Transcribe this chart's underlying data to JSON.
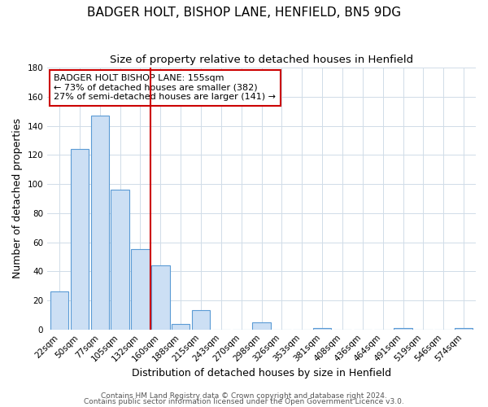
{
  "title": "BADGER HOLT, BISHOP LANE, HENFIELD, BN5 9DG",
  "subtitle": "Size of property relative to detached houses in Henfield",
  "xlabel": "Distribution of detached houses by size in Henfield",
  "ylabel": "Number of detached properties",
  "bar_labels": [
    "22sqm",
    "50sqm",
    "77sqm",
    "105sqm",
    "132sqm",
    "160sqm",
    "188sqm",
    "215sqm",
    "243sqm",
    "270sqm",
    "298sqm",
    "326sqm",
    "353sqm",
    "381sqm",
    "408sqm",
    "436sqm",
    "464sqm",
    "491sqm",
    "519sqm",
    "546sqm",
    "574sqm"
  ],
  "bar_heights": [
    26,
    124,
    147,
    96,
    55,
    44,
    4,
    13,
    0,
    0,
    5,
    0,
    0,
    1,
    0,
    0,
    0,
    1,
    0,
    0,
    1
  ],
  "bar_color": "#ccdff4",
  "bar_edge_color": "#5b9bd5",
  "vline_color": "#cc0000",
  "annotation_line1": "BADGER HOLT BISHOP LANE: 155sqm",
  "annotation_line2": "← 73% of detached houses are smaller (382)",
  "annotation_line3": "27% of semi-detached houses are larger (141) →",
  "annotation_box_color": "white",
  "annotation_box_edge_color": "#cc0000",
  "ylim": [
    0,
    180
  ],
  "yticks": [
    0,
    20,
    40,
    60,
    80,
    100,
    120,
    140,
    160,
    180
  ],
  "footer_line1": "Contains HM Land Registry data © Crown copyright and database right 2024.",
  "footer_line2": "Contains public sector information licensed under the Open Government Licence v3.0.",
  "background_color": "#ffffff",
  "grid_color": "#d0dce8",
  "title_fontsize": 11,
  "subtitle_fontsize": 9.5,
  "axis_label_fontsize": 9,
  "tick_fontsize": 7.5,
  "annotation_fontsize": 8,
  "footer_fontsize": 6.5
}
